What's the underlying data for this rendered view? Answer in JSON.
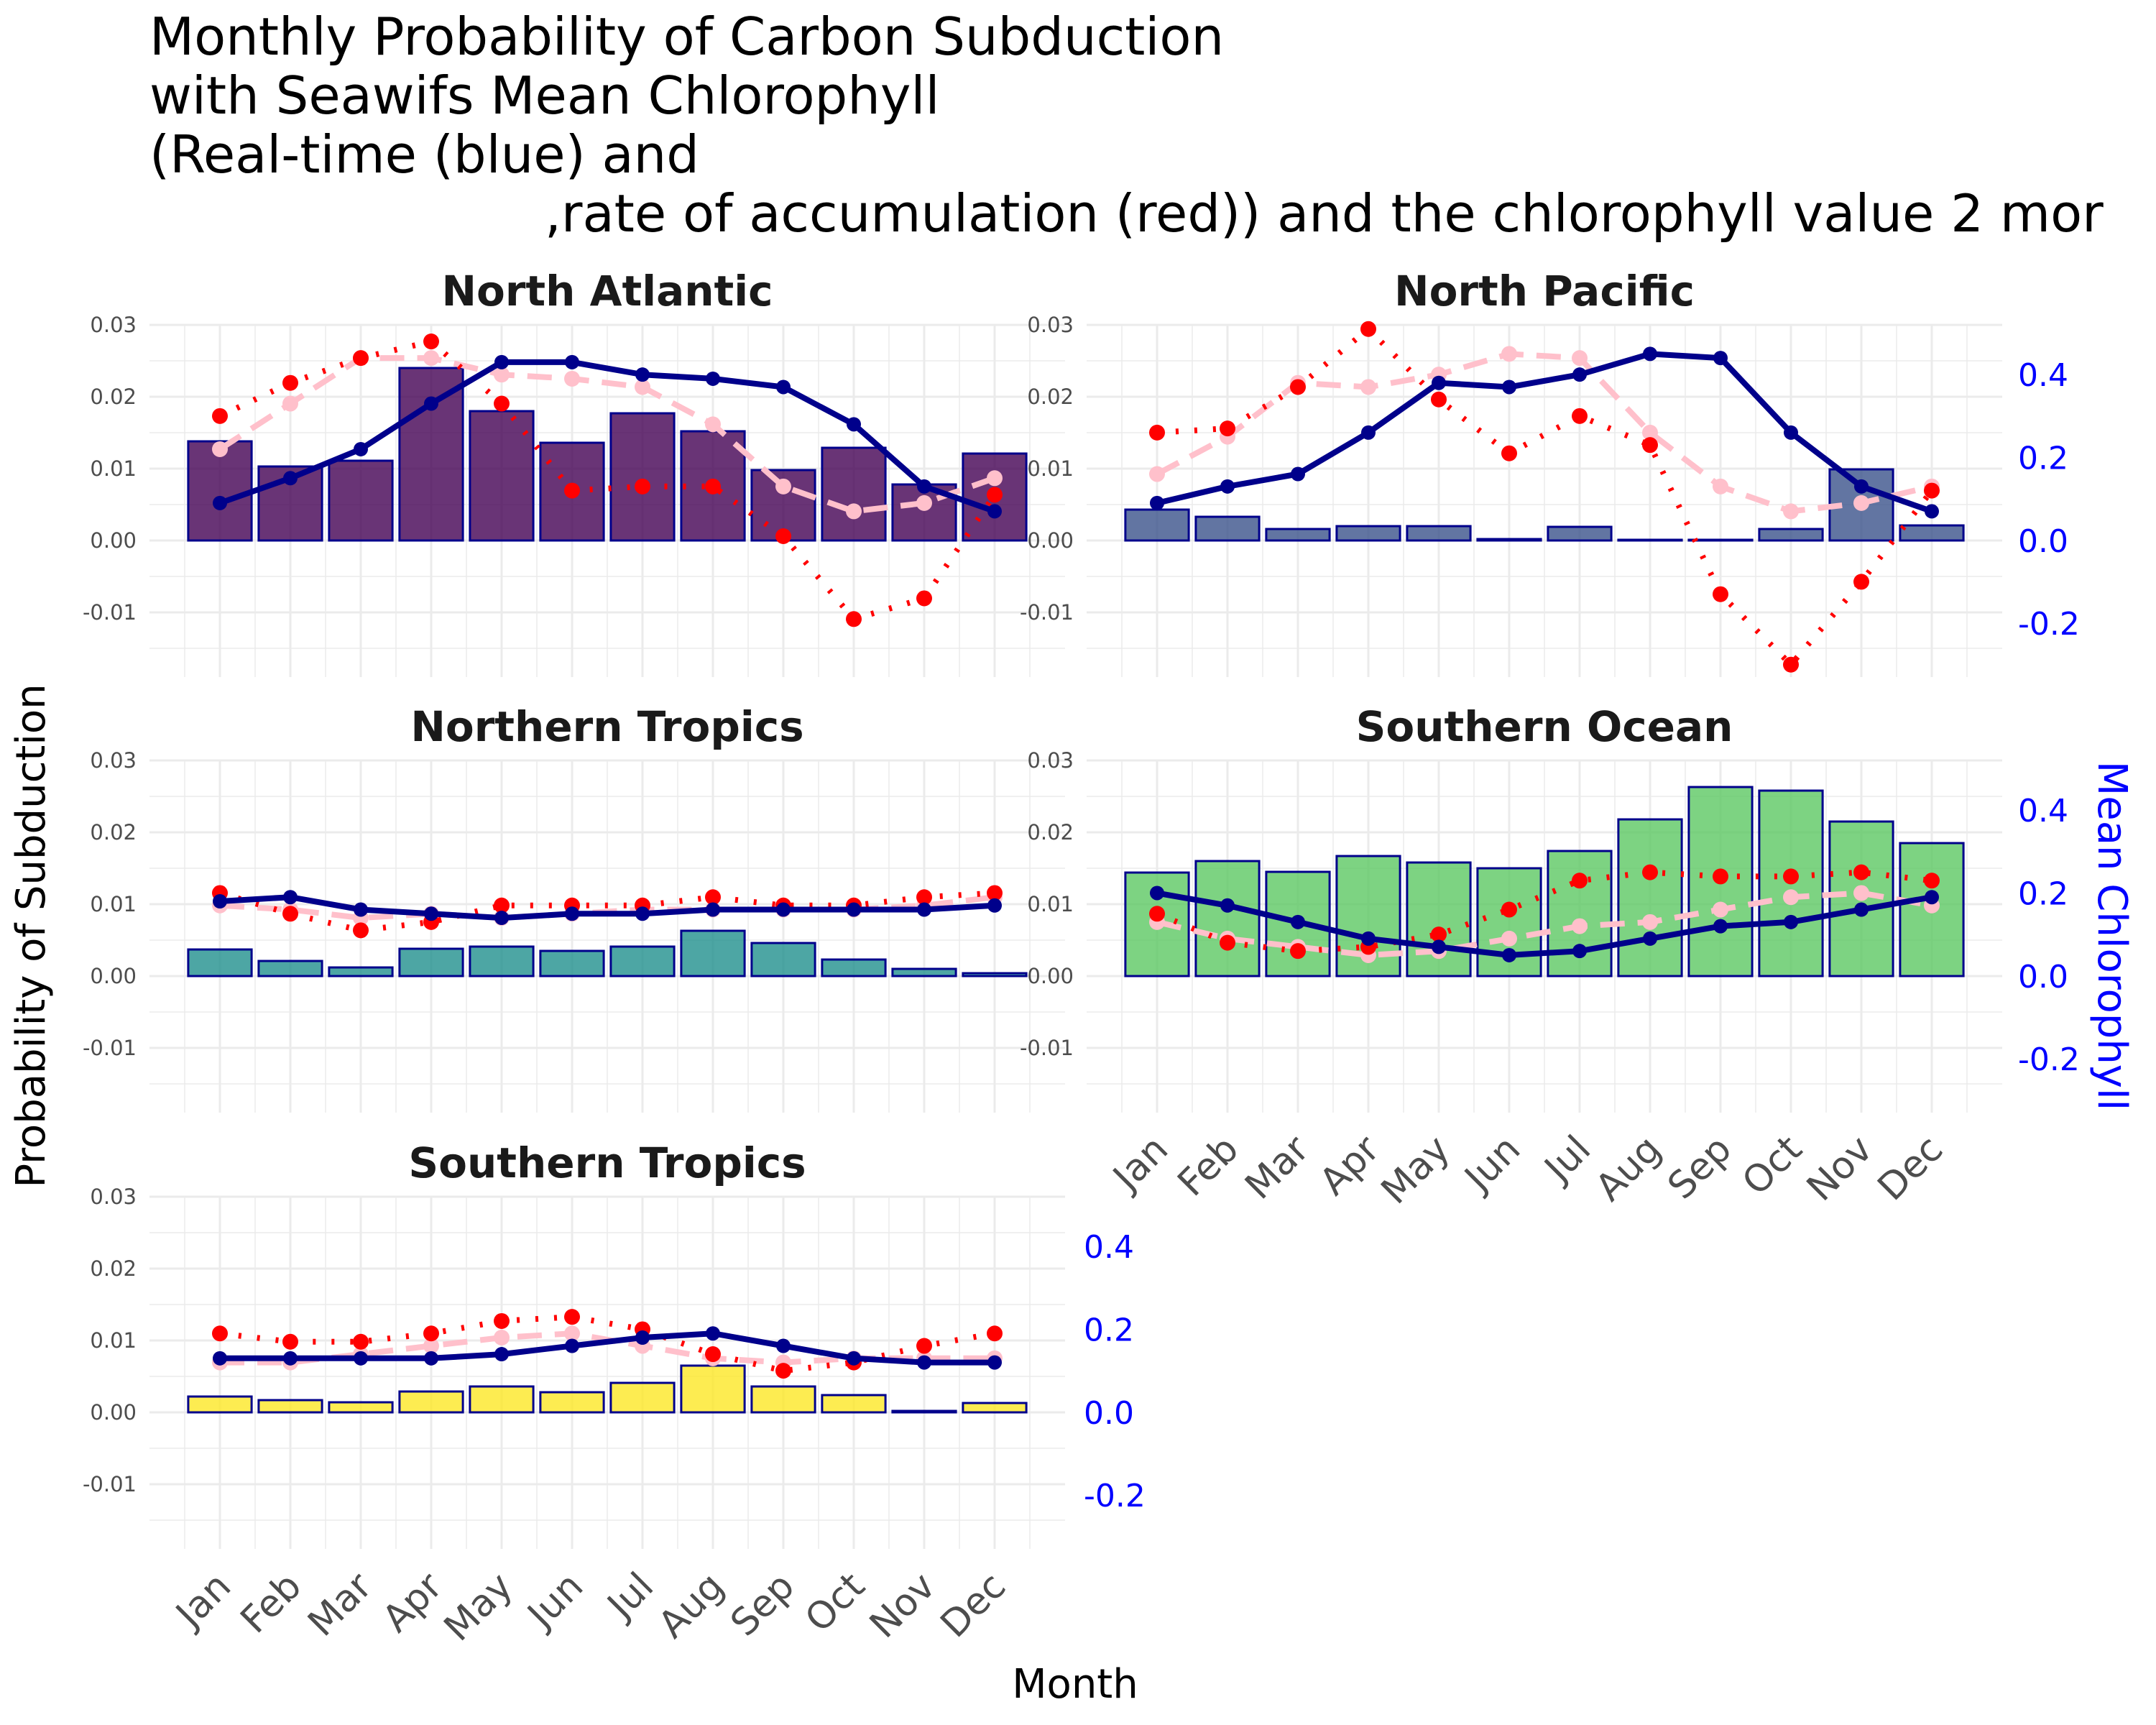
{
  "title_lines": [
    "Monthly Probability of Carbon Subduction",
    "with Seawifs Mean Chlorophyll",
    "(Real-time (blue) and",
    ",rate of accumulation (red)) and the chlorophyll value 2 mor"
  ],
  "colors": {
    "blue_line": "#00008b",
    "red_dotted": "#ff0000",
    "pink_dashed": "#ffc0cb",
    "bar_outline": "#00008b",
    "grid": "#ebebeb",
    "right_axis": "#0000ff"
  },
  "chart_data": {
    "type": "bar",
    "xlabel": "Month",
    "ylabel": "Probability of Subduction",
    "y2label": "Mean Chlorophyll",
    "categories": [
      "Jan",
      "Feb",
      "Mar",
      "Apr",
      "May",
      "Jun",
      "Jul",
      "Aug",
      "Sep",
      "Oct",
      "Nov",
      "Dec"
    ],
    "ylim": [
      -0.019,
      0.03
    ],
    "y2lim": [
      -0.33,
      0.52
    ],
    "yticks": [
      "0.03",
      "0.02",
      "0.01",
      "0.00",
      "-0.01"
    ],
    "yticks_values": [
      0.03,
      0.02,
      0.01,
      0.0,
      -0.01
    ],
    "y2ticks": [
      "0.4",
      "0.2",
      "0.0",
      "-0.2"
    ],
    "y2ticks_values": [
      0.4,
      0.2,
      0.0,
      -0.2
    ],
    "grid": true,
    "facets": [
      {
        "name": "North Atlantic",
        "bar_color": "#440154",
        "probability": [
          0.0138,
          0.0103,
          0.0111,
          0.024,
          0.018,
          0.0136,
          0.0177,
          0.0152,
          0.0098,
          0.0129,
          0.0078,
          0.0121
        ],
        "chlorophyll_realtime": [
          0.09,
          0.15,
          0.22,
          0.33,
          0.43,
          0.43,
          0.4,
          0.39,
          0.37,
          0.28,
          0.13,
          0.07
        ],
        "rate_of_accumulation": [
          0.3,
          0.38,
          0.44,
          0.48,
          0.33,
          0.12,
          0.13,
          0.13,
          0.01,
          -0.19,
          -0.14,
          0.11
        ],
        "chlorophyll_2_months": [
          0.22,
          0.33,
          0.44,
          0.44,
          0.4,
          0.39,
          0.37,
          0.28,
          0.13,
          0.07,
          0.09,
          0.15
        ]
      },
      {
        "name": "North Pacific",
        "bar_color": "#3b528b",
        "probability": [
          0.0043,
          0.0033,
          0.0016,
          0.002,
          0.002,
          0.0002,
          0.0019,
          0.0001,
          0.0001,
          0.0016,
          0.0099,
          0.0021
        ],
        "chlorophyll_realtime": [
          0.09,
          0.13,
          0.16,
          0.26,
          0.38,
          0.37,
          0.4,
          0.45,
          0.44,
          0.26,
          0.13,
          0.07
        ],
        "rate_of_accumulation": [
          0.26,
          0.27,
          0.37,
          0.51,
          0.34,
          0.21,
          0.3,
          0.23,
          -0.13,
          -0.3,
          -0.1,
          0.12
        ],
        "chlorophyll_2_months": [
          0.16,
          0.25,
          0.38,
          0.37,
          0.4,
          0.45,
          0.44,
          0.26,
          0.13,
          0.07,
          0.09,
          0.13
        ]
      },
      {
        "name": "Northern Tropics",
        "bar_color": "#21908d",
        "probability": [
          0.0037,
          0.0021,
          0.0012,
          0.0038,
          0.0041,
          0.0035,
          0.0041,
          0.0063,
          0.0046,
          0.0023,
          0.001,
          0.0004
        ],
        "chlorophyll_realtime": [
          0.18,
          0.19,
          0.16,
          0.15,
          0.14,
          0.15,
          0.15,
          0.16,
          0.16,
          0.16,
          0.16,
          0.17
        ],
        "rate_of_accumulation": [
          0.2,
          0.15,
          0.11,
          0.13,
          0.17,
          0.17,
          0.17,
          0.19,
          0.17,
          0.17,
          0.19,
          0.2
        ],
        "chlorophyll_2_months": [
          0.17,
          0.16,
          0.14,
          0.15,
          0.14,
          0.15,
          0.16,
          0.16,
          0.16,
          0.16,
          0.17,
          0.19
        ]
      },
      {
        "name": "Southern Ocean",
        "bar_color": "#5dc863",
        "probability": [
          0.0144,
          0.016,
          0.0145,
          0.0167,
          0.0158,
          0.015,
          0.0174,
          0.0218,
          0.0263,
          0.0258,
          0.0215,
          0.0185
        ],
        "chlorophyll_realtime": [
          0.2,
          0.17,
          0.13,
          0.09,
          0.07,
          0.05,
          0.06,
          0.09,
          0.12,
          0.13,
          0.16,
          0.19
        ],
        "rate_of_accumulation": [
          0.15,
          0.08,
          0.06,
          0.07,
          0.1,
          0.16,
          0.23,
          0.25,
          0.24,
          0.24,
          0.25,
          0.23
        ],
        "chlorophyll_2_months": [
          0.13,
          0.09,
          0.07,
          0.05,
          0.06,
          0.09,
          0.12,
          0.13,
          0.16,
          0.19,
          0.2,
          0.17
        ]
      },
      {
        "name": "Southern Tropics",
        "bar_color": "#fde725",
        "probability": [
          0.0022,
          0.0017,
          0.0014,
          0.0029,
          0.0036,
          0.0028,
          0.0041,
          0.0065,
          0.0036,
          0.0024,
          0.0002,
          0.0013
        ],
        "chlorophyll_realtime": [
          0.13,
          0.13,
          0.13,
          0.13,
          0.14,
          0.16,
          0.18,
          0.19,
          0.16,
          0.13,
          0.12,
          0.12
        ],
        "rate_of_accumulation": [
          0.19,
          0.17,
          0.17,
          0.19,
          0.22,
          0.23,
          0.2,
          0.14,
          0.1,
          0.12,
          0.16,
          0.19
        ],
        "chlorophyll_2_months": [
          0.12,
          0.12,
          0.14,
          0.16,
          0.18,
          0.19,
          0.16,
          0.13,
          0.12,
          0.13,
          0.13,
          0.13
        ]
      }
    ]
  }
}
